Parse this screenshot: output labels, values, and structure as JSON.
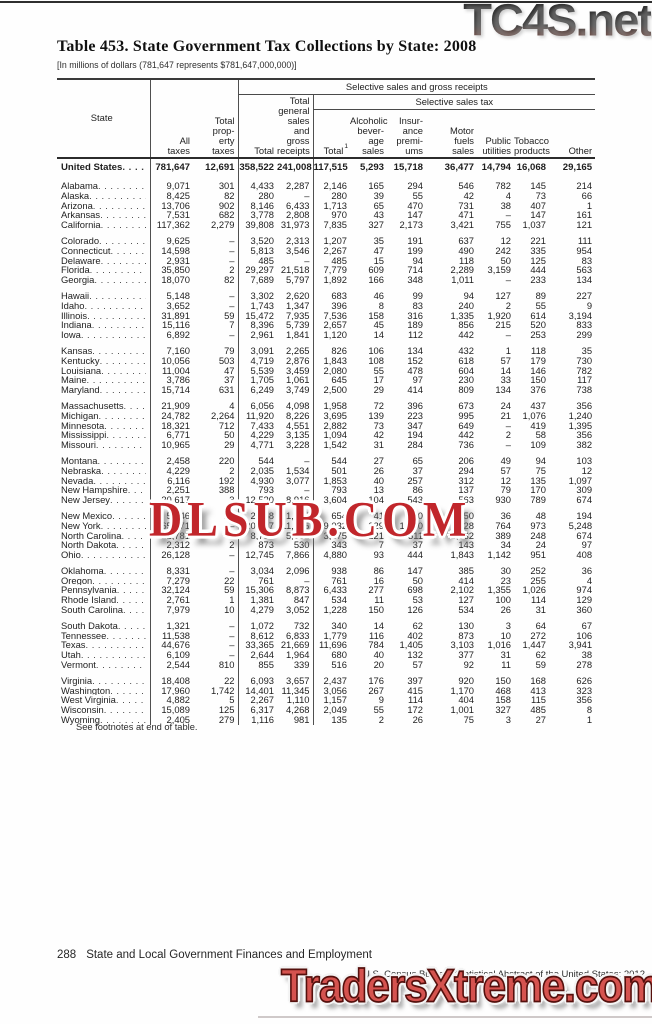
{
  "watermarks": {
    "top": "TC4S.net",
    "middle": "DLSUB.COM",
    "bottom": "TradersXtreme.com"
  },
  "header": {
    "title": "Table 453. State Government Tax Collections by State: 2008",
    "subtitle": "[In millions of dollars (781,647 represents $781,647,000,000)]"
  },
  "table": {
    "cols": {
      "state": "State",
      "all_taxes": "All\ntaxes",
      "property": "Total\nprop-\nerty\ntaxes",
      "group_sales": "Selective sales and gross receipts",
      "total": "Total",
      "general": "Total\ngeneral\nsales\nand\ngross\nreceipts",
      "group_selective": "Selective sales tax",
      "total1": "Total",
      "total1_sup": "1",
      "alcoholic": "Alcoholic\nbever-\nage\nsales",
      "insurance": "Insur-\nance\npremi-\nums",
      "motor": "Motor\nfuels\nsales",
      "utilities": "Public\nutilities",
      "tobacco": "Tobacco\nproducts",
      "other": "Other"
    },
    "us_row": {
      "name": "United States",
      "values": [
        "781,647",
        "12,691",
        "358,522",
        "241,008",
        "117,515",
        "5,293",
        "15,718",
        "36,477",
        "14,794",
        "16,068",
        "29,165"
      ]
    },
    "groups": [
      [
        {
          "name": "Alabama",
          "values": [
            "9,071",
            "301",
            "4,433",
            "2,287",
            "2,146",
            "165",
            "294",
            "546",
            "782",
            "145",
            "214"
          ]
        },
        {
          "name": "Alaska",
          "values": [
            "8,425",
            "82",
            "280",
            "–",
            "280",
            "39",
            "55",
            "42",
            "4",
            "73",
            "66"
          ]
        },
        {
          "name": "Arizona",
          "values": [
            "13,706",
            "902",
            "8,146",
            "6,433",
            "1,713",
            "65",
            "470",
            "731",
            "38",
            "407",
            "1"
          ]
        },
        {
          "name": "Arkansas",
          "values": [
            "7,531",
            "682",
            "3,778",
            "2,808",
            "970",
            "43",
            "147",
            "471",
            "–",
            "147",
            "161"
          ]
        },
        {
          "name": "California",
          "values": [
            "117,362",
            "2,279",
            "39,808",
            "31,973",
            "7,835",
            "327",
            "2,173",
            "3,421",
            "755",
            "1,037",
            "121"
          ]
        }
      ],
      [
        {
          "name": "Colorado",
          "values": [
            "9,625",
            "–",
            "3,520",
            "2,313",
            "1,207",
            "35",
            "191",
            "637",
            "12",
            "221",
            "111"
          ]
        },
        {
          "name": "Connecticut",
          "values": [
            "14,598",
            "–",
            "5,813",
            "3,546",
            "2,267",
            "47",
            "199",
            "490",
            "242",
            "335",
            "954"
          ]
        },
        {
          "name": "Delaware",
          "values": [
            "2,931",
            "–",
            "485",
            "–",
            "485",
            "15",
            "94",
            "118",
            "50",
            "125",
            "83"
          ]
        },
        {
          "name": "Florida",
          "values": [
            "35,850",
            "2",
            "29,297",
            "21,518",
            "7,779",
            "609",
            "714",
            "2,289",
            "3,159",
            "444",
            "563"
          ]
        },
        {
          "name": "Georgia",
          "values": [
            "18,070",
            "82",
            "7,689",
            "5,797",
            "1,892",
            "166",
            "348",
            "1,011",
            "–",
            "233",
            "134"
          ]
        }
      ],
      [
        {
          "name": "Hawaii",
          "values": [
            "5,148",
            "–",
            "3,302",
            "2,620",
            "683",
            "46",
            "99",
            "94",
            "127",
            "89",
            "227"
          ]
        },
        {
          "name": "Idaho",
          "values": [
            "3,652",
            "–",
            "1,743",
            "1,347",
            "396",
            "8",
            "83",
            "240",
            "2",
            "55",
            "9"
          ]
        },
        {
          "name": "Illinois",
          "values": [
            "31,891",
            "59",
            "15,472",
            "7,935",
            "7,536",
            "158",
            "316",
            "1,335",
            "1,920",
            "614",
            "3,194"
          ]
        },
        {
          "name": "Indiana",
          "values": [
            "15,116",
            "7",
            "8,396",
            "5,739",
            "2,657",
            "45",
            "189",
            "856",
            "215",
            "520",
            "833"
          ]
        },
        {
          "name": "Iowa",
          "values": [
            "6,892",
            "–",
            "2,961",
            "1,841",
            "1,120",
            "14",
            "112",
            "442",
            "–",
            "253",
            "299"
          ]
        }
      ],
      [
        {
          "name": "Kansas",
          "values": [
            "7,160",
            "79",
            "3,091",
            "2,265",
            "826",
            "106",
            "134",
            "432",
            "1",
            "118",
            "35"
          ]
        },
        {
          "name": "Kentucky",
          "values": [
            "10,056",
            "503",
            "4,719",
            "2,876",
            "1,843",
            "108",
            "152",
            "618",
            "57",
            "179",
            "730"
          ]
        },
        {
          "name": "Louisiana",
          "values": [
            "11,004",
            "47",
            "5,539",
            "3,459",
            "2,080",
            "55",
            "478",
            "604",
            "14",
            "146",
            "782"
          ]
        },
        {
          "name": "Maine",
          "values": [
            "3,786",
            "37",
            "1,705",
            "1,061",
            "645",
            "17",
            "97",
            "230",
            "33",
            "150",
            "117"
          ]
        },
        {
          "name": "Maryland",
          "values": [
            "15,714",
            "631",
            "6,249",
            "3,749",
            "2,500",
            "29",
            "414",
            "809",
            "134",
            "376",
            "738"
          ]
        }
      ],
      [
        {
          "name": "Massachusetts",
          "values": [
            "21,909",
            "4",
            "6,056",
            "4,098",
            "1,958",
            "72",
            "396",
            "673",
            "24",
            "437",
            "356"
          ]
        },
        {
          "name": "Michigan",
          "values": [
            "24,782",
            "2,264",
            "11,920",
            "8,226",
            "3,695",
            "139",
            "223",
            "995",
            "21",
            "1,076",
            "1,240"
          ]
        },
        {
          "name": "Minnesota",
          "values": [
            "18,321",
            "712",
            "7,433",
            "4,551",
            "2,882",
            "73",
            "347",
            "649",
            "–",
            "419",
            "1,395"
          ]
        },
        {
          "name": "Mississippi",
          "values": [
            "6,771",
            "50",
            "4,229",
            "3,135",
            "1,094",
            "42",
            "194",
            "442",
            "2",
            "58",
            "356"
          ]
        },
        {
          "name": "Missouri",
          "values": [
            "10,965",
            "29",
            "4,771",
            "3,228",
            "1,542",
            "31",
            "284",
            "736",
            "–",
            "109",
            "382"
          ]
        }
      ],
      [
        {
          "name": "Montana",
          "values": [
            "2,458",
            "220",
            "544",
            "–",
            "544",
            "27",
            "65",
            "206",
            "49",
            "94",
            "103"
          ]
        },
        {
          "name": "Nebraska",
          "values": [
            "4,229",
            "2",
            "2,035",
            "1,534",
            "501",
            "26",
            "37",
            "294",
            "57",
            "75",
            "12"
          ]
        },
        {
          "name": "Nevada",
          "values": [
            "6,116",
            "192",
            "4,930",
            "3,077",
            "1,853",
            "40",
            "257",
            "312",
            "12",
            "135",
            "1,097"
          ]
        },
        {
          "name": "New Hampshire",
          "values": [
            "2,251",
            "388",
            "793",
            "–",
            "793",
            "13",
            "86",
            "137",
            "79",
            "170",
            "309"
          ]
        },
        {
          "name": "New Jersey",
          "values": [
            "30,617",
            "3",
            "12,520",
            "8,916",
            "3,604",
            "104",
            "543",
            "563",
            "930",
            "789",
            "674"
          ]
        }
      ],
      [
        {
          "name": "New Mexico",
          "values": [
            "5,646",
            "24",
            "2,558",
            "1,904",
            "654",
            "41",
            "100",
            "250",
            "36",
            "48",
            "194"
          ]
        },
        {
          "name": "New York",
          "values": [
            "65,371",
            "–",
            "20,327",
            "11,295",
            "9,032",
            "229",
            "1,290",
            "528",
            "764",
            "973",
            "5,248"
          ]
        },
        {
          "name": "North Carolina",
          "values": [
            "22,781",
            "–",
            "8,757",
            "5,082",
            "3,675",
            "221",
            "511",
            "1,632",
            "389",
            "248",
            "674"
          ]
        },
        {
          "name": "North Dakota",
          "values": [
            "2,312",
            "2",
            "873",
            "530",
            "343",
            "7",
            "37",
            "143",
            "34",
            "24",
            "97"
          ]
        },
        {
          "name": "Ohio",
          "values": [
            "26,128",
            "–",
            "12,745",
            "7,866",
            "4,880",
            "93",
            "444",
            "1,843",
            "1,142",
            "951",
            "408"
          ]
        }
      ],
      [
        {
          "name": "Oklahoma",
          "values": [
            "8,331",
            "–",
            "3,034",
            "2,096",
            "938",
            "86",
            "147",
            "385",
            "30",
            "252",
            "36"
          ]
        },
        {
          "name": "Oregon",
          "values": [
            "7,279",
            "22",
            "761",
            "–",
            "761",
            "16",
            "50",
            "414",
            "23",
            "255",
            "4"
          ]
        },
        {
          "name": "Pennsylvania",
          "values": [
            "32,124",
            "59",
            "15,306",
            "8,873",
            "6,433",
            "277",
            "698",
            "2,102",
            "1,355",
            "1,026",
            "974"
          ]
        },
        {
          "name": "Rhode Island",
          "values": [
            "2,761",
            "1",
            "1,381",
            "847",
            "534",
            "11",
            "53",
            "127",
            "100",
            "114",
            "129"
          ]
        },
        {
          "name": "South Carolina",
          "values": [
            "7,979",
            "10",
            "4,279",
            "3,052",
            "1,228",
            "150",
            "126",
            "534",
            "26",
            "31",
            "360"
          ]
        }
      ],
      [
        {
          "name": "South Dakota",
          "values": [
            "1,321",
            "–",
            "1,072",
            "732",
            "340",
            "14",
            "62",
            "130",
            "3",
            "64",
            "67"
          ]
        },
        {
          "name": "Tennessee",
          "values": [
            "11,538",
            "–",
            "8,612",
            "6,833",
            "1,779",
            "116",
            "402",
            "873",
            "10",
            "272",
            "106"
          ]
        },
        {
          "name": "Texas",
          "values": [
            "44,676",
            "–",
            "33,365",
            "21,669",
            "11,696",
            "784",
            "1,405",
            "3,103",
            "1,016",
            "1,447",
            "3,941"
          ]
        },
        {
          "name": "Utah",
          "values": [
            "6,109",
            "–",
            "2,644",
            "1,964",
            "680",
            "40",
            "132",
            "377",
            "31",
            "62",
            "38"
          ]
        },
        {
          "name": "Vermont",
          "values": [
            "2,544",
            "810",
            "855",
            "339",
            "516",
            "20",
            "57",
            "92",
            "11",
            "59",
            "278"
          ]
        }
      ],
      [
        {
          "name": "Virginia",
          "values": [
            "18,408",
            "22",
            "6,093",
            "3,657",
            "2,437",
            "176",
            "397",
            "920",
            "150",
            "168",
            "626"
          ]
        },
        {
          "name": "Washington",
          "values": [
            "17,960",
            "1,742",
            "14,401",
            "11,345",
            "3,056",
            "267",
            "415",
            "1,170",
            "468",
            "413",
            "323"
          ]
        },
        {
          "name": "West Virginia",
          "values": [
            "4,882",
            "5",
            "2,267",
            "1,110",
            "1,157",
            "9",
            "114",
            "404",
            "158",
            "115",
            "356"
          ]
        },
        {
          "name": "Wisconsin",
          "values": [
            "15,089",
            "125",
            "6,317",
            "4,268",
            "2,049",
            "55",
            "172",
            "1,001",
            "327",
            "485",
            "8"
          ]
        },
        {
          "name": "Wyoming",
          "values": [
            "2,405",
            "279",
            "1,116",
            "981",
            "135",
            "2",
            "26",
            "75",
            "3",
            "27",
            "1"
          ]
        }
      ]
    ],
    "footnote": "See footnotes at end of table."
  },
  "footer": {
    "page_number": "288",
    "section_title": "State and Local Government Finances and Employment",
    "source": "U.S. Census Bureau, Statistical Abstract of the United States: 2012"
  },
  "colors": {
    "watermark_red": "#c1262b",
    "watermark_salmon": "#d5534f",
    "ink": "#1f1f1f"
  }
}
